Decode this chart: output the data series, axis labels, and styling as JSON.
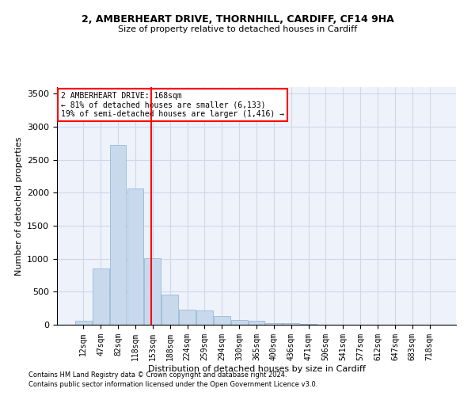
{
  "title1": "2, AMBERHEART DRIVE, THORNHILL, CARDIFF, CF14 9HA",
  "title2": "Size of property relative to detached houses in Cardiff",
  "xlabel": "Distribution of detached houses by size in Cardiff",
  "ylabel": "Number of detached properties",
  "footnote1": "Contains HM Land Registry data © Crown copyright and database right 2024.",
  "footnote2": "Contains public sector information licensed under the Open Government Licence v3.0.",
  "bin_labels": [
    "12sqm",
    "47sqm",
    "82sqm",
    "118sqm",
    "153sqm",
    "188sqm",
    "224sqm",
    "259sqm",
    "294sqm",
    "330sqm",
    "365sqm",
    "400sqm",
    "436sqm",
    "471sqm",
    "506sqm",
    "541sqm",
    "577sqm",
    "612sqm",
    "647sqm",
    "683sqm",
    "718sqm"
  ],
  "bar_values": [
    55,
    850,
    2720,
    2060,
    1010,
    455,
    225,
    215,
    130,
    70,
    55,
    30,
    20,
    10,
    5,
    5,
    2,
    2,
    1,
    1,
    0
  ],
  "bar_color": "#c9d9ed",
  "bar_edge_color": "#8ab0d0",
  "grid_color": "#d0d8e8",
  "bg_color": "#eef2fa",
  "vline_color": "red",
  "annotation_line1": "2 AMBERHEART DRIVE: 168sqm",
  "annotation_line2": "← 81% of detached houses are smaller (6,133)",
  "annotation_line3": "19% of semi-detached houses are larger (1,416) →",
  "ylim": [
    0,
    3600
  ],
  "yticks": [
    0,
    500,
    1000,
    1500,
    2000,
    2500,
    3000,
    3500
  ],
  "title1_fontsize": 9,
  "title2_fontsize": 8,
  "xlabel_fontsize": 8,
  "ylabel_fontsize": 8,
  "tick_fontsize": 7,
  "footnote_fontsize": 6
}
